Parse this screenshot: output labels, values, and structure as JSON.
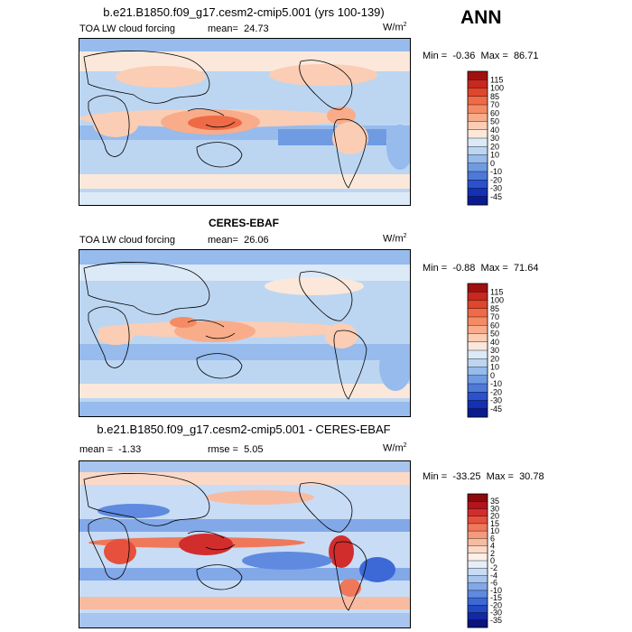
{
  "season": "ANN",
  "units_base": "W/m",
  "units_sup": "2",
  "chart_data": [
    {
      "type": "heatmap",
      "title": "b.e21.B1850.f09_g17.cesm2-cmip5.001 (yrs 100-139)",
      "subtitle": "TOA LW cloud forcing",
      "stat_label": "mean=",
      "stat_value": "24.73",
      "min_label": "Min =",
      "min_value": "-0.36",
      "max_label": "Max =",
      "max_value": "86.71",
      "colorbar_labels": [
        "115",
        "100",
        "85",
        "70",
        "60",
        "50",
        "40",
        "30",
        "20",
        "10",
        "0",
        "-10",
        "-20",
        "-30",
        "-45"
      ],
      "colors": [
        "#a01010",
        "#c8281e",
        "#e0462c",
        "#ef6a46",
        "#f48b65",
        "#f8ac8a",
        "#fbcdb4",
        "#fbe8da",
        "#dce9f7",
        "#bcd6f2",
        "#96bbec",
        "#6f9be3",
        "#4d79d9",
        "#2b52cc",
        "#1430b4",
        "#0a1a8f"
      ]
    },
    {
      "type": "heatmap",
      "title": "CERES-EBAF",
      "subtitle": "TOA LW cloud forcing",
      "stat_label": "mean=",
      "stat_value": "26.06",
      "min_label": "Min =",
      "min_value": "-0.88",
      "max_label": "Max =",
      "max_value": "71.64",
      "colorbar_labels": [
        "115",
        "100",
        "85",
        "70",
        "60",
        "50",
        "40",
        "30",
        "20",
        "10",
        "0",
        "-10",
        "-20",
        "-30",
        "-45"
      ],
      "colors": [
        "#a01010",
        "#c8281e",
        "#e0462c",
        "#ef6a46",
        "#f48b65",
        "#f8ac8a",
        "#fbcdb4",
        "#fbe8da",
        "#dce9f7",
        "#bcd6f2",
        "#96bbec",
        "#6f9be3",
        "#4d79d9",
        "#2b52cc",
        "#1430b4",
        "#0a1a8f"
      ]
    },
    {
      "type": "heatmap",
      "title": "b.e21.B1850.f09_g17.cesm2-cmip5.001 - CERES-EBAF",
      "stat_label": "mean =",
      "stat_value": "-1.33",
      "stat2_label": "rmse =",
      "stat2_value": "5.05",
      "min_label": "Min =",
      "min_value": "-33.25",
      "max_label": "Max =",
      "max_value": "30.78",
      "colorbar_labels": [
        "35",
        "30",
        "20",
        "15",
        "10",
        "6",
        "4",
        "2",
        "0",
        "-2",
        "-4",
        "-6",
        "-10",
        "-15",
        "-20",
        "-30",
        "-35"
      ],
      "colors": [
        "#8c0a0a",
        "#b4141e",
        "#d22d2d",
        "#e6503c",
        "#f0785a",
        "#f59b7d",
        "#f9bba0",
        "#fcd8c6",
        "#fdf0e8",
        "#e6eefa",
        "#c8dcf5",
        "#a8c5ef",
        "#82a8e8",
        "#5f8ae0",
        "#3c69d6",
        "#2348c3",
        "#1228a5",
        "#08137d"
      ]
    }
  ]
}
